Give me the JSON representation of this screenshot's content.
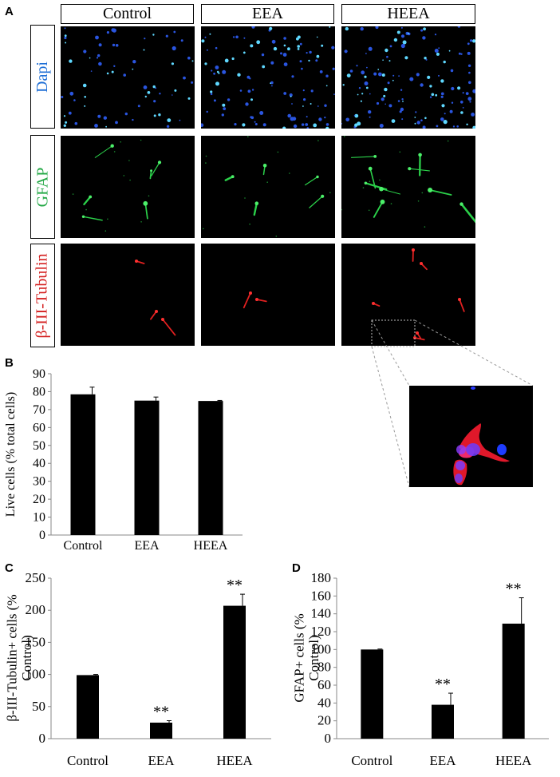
{
  "panel_letters": {
    "a": "A",
    "b": "B",
    "c": "C",
    "d": "D"
  },
  "panel_a": {
    "columns": [
      "Control",
      "EEA",
      "HEEA"
    ],
    "rows": [
      {
        "label": "Dapi",
        "color": "#1f6fd6"
      },
      {
        "label": "GFAP",
        "color": "#22a845"
      },
      {
        "label": "β-III-Tubulin",
        "color": "#d42020"
      }
    ]
  },
  "chart_data": [
    {
      "panel": "B",
      "type": "bar",
      "categories": [
        "Control",
        "EEA",
        "HEEA"
      ],
      "values": [
        78.5,
        75.0,
        74.8
      ],
      "errors": [
        4.0,
        2.0,
        0.3
      ],
      "significance": [
        "",
        "",
        ""
      ],
      "ylabel": "Live cells (% total cells)",
      "ylim": [
        0,
        90
      ],
      "yticks": [
        0,
        10,
        20,
        30,
        40,
        50,
        60,
        70,
        80,
        90
      ],
      "bar_color": "#000000"
    },
    {
      "panel": "C",
      "type": "bar",
      "categories": [
        "Control",
        "EEA",
        "HEEA"
      ],
      "values": [
        99,
        25,
        207
      ],
      "errors": [
        1,
        3,
        18
      ],
      "significance": [
        "",
        "**",
        "**"
      ],
      "ylabel": "β-III-Tubulin+ cells (% Control)",
      "ylim": [
        0,
        250
      ],
      "yticks": [
        0,
        50,
        100,
        150,
        200,
        250
      ],
      "bar_color": "#000000"
    },
    {
      "panel": "D",
      "type": "bar",
      "categories": [
        "Control",
        "EEA",
        "HEEA"
      ],
      "values": [
        100,
        38,
        129
      ],
      "errors": [
        0.5,
        13,
        29
      ],
      "significance": [
        "",
        "**",
        "**"
      ],
      "ylabel": "GFAP+ cells (% Control)",
      "ylim": [
        0,
        180
      ],
      "yticks": [
        0,
        20,
        40,
        60,
        80,
        100,
        120,
        140,
        160,
        180
      ],
      "bar_color": "#000000"
    }
  ]
}
